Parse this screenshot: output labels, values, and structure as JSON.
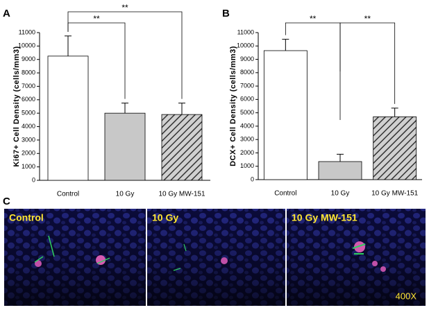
{
  "chart_data": [
    {
      "type": "bar",
      "panel_label": "A",
      "ylabel": "Ki67+ Cell Density (cells/mm3)",
      "categories": [
        "Control",
        "10 Gy",
        "10 Gy MW-151"
      ],
      "values": [
        9250,
        5000,
        4900
      ],
      "errors": [
        1500,
        750,
        850
      ],
      "colors": [
        "#ffffff",
        "#c8c8c8",
        "#d0d0d0"
      ],
      "hatched": [
        false,
        false,
        true
      ],
      "ylim": [
        0,
        11000
      ],
      "yticks": [
        0,
        1000,
        2000,
        3000,
        4000,
        5000,
        6000,
        7000,
        8000,
        9000,
        10000,
        11000
      ],
      "comparisons": [
        {
          "from": "Control",
          "to": "10 Gy",
          "label": "**"
        },
        {
          "from": "Control",
          "to": "10 Gy MW-151",
          "label": "**"
        }
      ]
    },
    {
      "type": "bar",
      "panel_label": "B",
      "ylabel": "DCX+ Cell Density (cells/mm3)",
      "categories": [
        "Control",
        "10 Gy",
        "10 Gy MW-151"
      ],
      "values": [
        9650,
        1350,
        4700
      ],
      "errors": [
        850,
        550,
        650
      ],
      "colors": [
        "#ffffff",
        "#c8c8c8",
        "#d0d0d0"
      ],
      "hatched": [
        false,
        false,
        true
      ],
      "ylim": [
        0,
        11000
      ],
      "yticks": [
        0,
        1000,
        2000,
        3000,
        4000,
        5000,
        6000,
        7000,
        8000,
        9000,
        10000,
        11000
      ],
      "comparisons": [
        {
          "from": "Control",
          "to": "10 Gy",
          "label": "**"
        },
        {
          "from": "10 Gy",
          "to": "10 Gy MW-151",
          "label": "**"
        }
      ]
    }
  ],
  "panel_c": {
    "label": "C",
    "images": [
      "Control",
      "10 Gy",
      "10 Gy MW-151"
    ],
    "magnification": "400X"
  }
}
